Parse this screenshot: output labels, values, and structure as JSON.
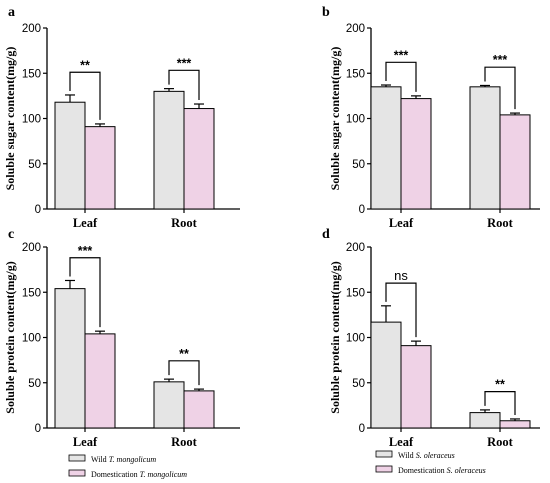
{
  "colors": {
    "wild": "#e5e5e5",
    "domestication": "#efd2e6",
    "stroke": "#000000"
  },
  "chart_data": [
    {
      "panel": "a",
      "type": "bar",
      "categories": [
        "Leaf",
        "Root"
      ],
      "ylabel": "Soluble sugar content(mg/g)",
      "ylim": [
        0,
        200
      ],
      "yticks": [
        0,
        50,
        100,
        150,
        200
      ],
      "series": [
        {
          "values": [
            118,
            130
          ],
          "errors": [
            8,
            3
          ]
        },
        {
          "values": [
            91,
            111
          ],
          "errors": [
            3,
            5
          ]
        }
      ],
      "significance": [
        "**",
        "***"
      ]
    },
    {
      "panel": "b",
      "type": "bar",
      "categories": [
        "Leaf",
        "Root"
      ],
      "ylabel": "Soluble sugar content(mg/g)",
      "ylim": [
        0,
        200
      ],
      "yticks": [
        0,
        50,
        100,
        150,
        200
      ],
      "series": [
        {
          "values": [
            135,
            135
          ],
          "errors": [
            2,
            1.5
          ]
        },
        {
          "values": [
            122,
            104
          ],
          "errors": [
            3,
            2
          ]
        }
      ],
      "significance": [
        "***",
        "***"
      ]
    },
    {
      "panel": "c",
      "type": "bar",
      "categories": [
        "Leaf",
        "Root"
      ],
      "ylabel": "Soluble protein content(mg/g)",
      "ylim": [
        0,
        200
      ],
      "yticks": [
        0,
        50,
        100,
        150,
        200
      ],
      "series": [
        {
          "values": [
            154,
            51
          ],
          "errors": [
            9,
            3
          ]
        },
        {
          "values": [
            104,
            41
          ],
          "errors": [
            3,
            2
          ]
        }
      ],
      "significance": [
        "***",
        "**"
      ]
    },
    {
      "panel": "d",
      "type": "bar",
      "categories": [
        "Leaf",
        "Root"
      ],
      "ylabel": "Soluble protein content(mg/g)",
      "ylim": [
        0,
        200
      ],
      "yticks": [
        0,
        50,
        100,
        150,
        200
      ],
      "series": [
        {
          "values": [
            117,
            17
          ],
          "errors": [
            18,
            3
          ]
        },
        {
          "values": [
            91,
            8
          ],
          "errors": [
            5,
            2
          ]
        }
      ],
      "significance": [
        "ns",
        "**"
      ]
    }
  ],
  "legends": {
    "left": [
      {
        "prefix": "Wild ",
        "species": "T. mongolicum"
      },
      {
        "prefix": "Domestication ",
        "species": "T. mongolicum"
      }
    ],
    "right": [
      {
        "prefix": "Wild ",
        "species": "S. oleraceus"
      },
      {
        "prefix": "Domestication ",
        "species": "S. oleraceus"
      }
    ]
  }
}
